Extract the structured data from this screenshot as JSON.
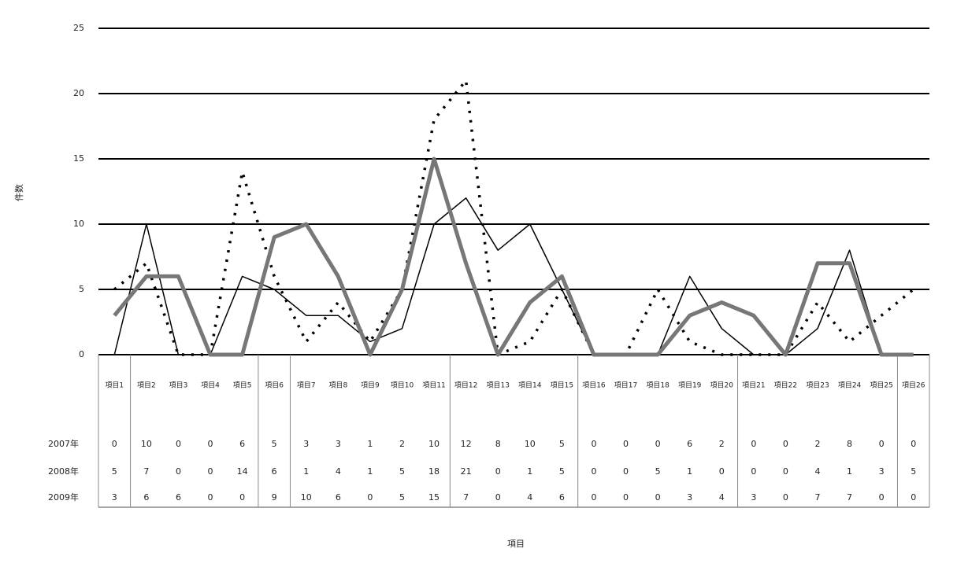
{
  "chart_data": {
    "type": "line",
    "y_label": "件数",
    "x_label": "項目",
    "categories": [
      "項目1",
      "項目2",
      "項目3",
      "項目4",
      "項目5",
      "項目6",
      "項目7",
      "項目8",
      "項目9",
      "項目10",
      "項目11",
      "項目12",
      "項目13",
      "項目14",
      "項目15",
      "項目16",
      "項目17",
      "項目18",
      "項目19",
      "項目20",
      "項目21",
      "項目22",
      "項目23",
      "項目24",
      "項目25",
      "項目26"
    ],
    "series": [
      {
        "name": "2007年",
        "color": "#000000",
        "width": 1.5,
        "dash": "none",
        "values": [
          0,
          10,
          0,
          0,
          6,
          5,
          3,
          3,
          1,
          2,
          10,
          12,
          8,
          10,
          5,
          0,
          0,
          0,
          6,
          2,
          0,
          0,
          2,
          8,
          0,
          0
        ]
      },
      {
        "name": "2008年",
        "color": "#000000",
        "width": 3.5,
        "dash": "3 9",
        "values": [
          5,
          7,
          0,
          0,
          14,
          6,
          1,
          4,
          1,
          5,
          18,
          21,
          0,
          1,
          5,
          0,
          0,
          5,
          1,
          0,
          0,
          0,
          4,
          1,
          3,
          5
        ]
      },
      {
        "name": "2009年",
        "color": "#777777",
        "width": 5,
        "dash": "none",
        "values": [
          3,
          6,
          6,
          0,
          0,
          9,
          10,
          6,
          0,
          5,
          15,
          7,
          0,
          4,
          6,
          0,
          0,
          0,
          3,
          4,
          3,
          0,
          7,
          7,
          0,
          0
        ]
      }
    ],
    "ylim": [
      0,
      25
    ],
    "yticks": [
      0,
      5,
      10,
      15,
      20,
      25
    ],
    "grid": true
  }
}
